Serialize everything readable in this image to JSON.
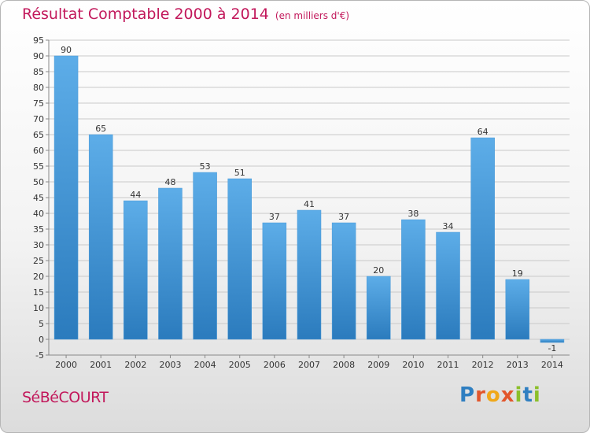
{
  "header": {
    "title": "Résultat Comptable 2000 à 2014",
    "subtitle": "(en milliers d'€)"
  },
  "footer": {
    "commune": "SéBéCOURT",
    "logo": "Proxiti"
  },
  "colors": {
    "title": "#c2185b",
    "bar_top": "#5dade8",
    "bar_bottom": "#2b7bbd",
    "grid": "#c9c9c9"
  },
  "chart_data": {
    "type": "bar",
    "title": "Résultat Comptable 2000 à 2014",
    "subtitle": "(en milliers d'€)",
    "xlabel": "",
    "ylabel": "",
    "categories": [
      "2000",
      "2001",
      "2002",
      "2003",
      "2004",
      "2005",
      "2006",
      "2007",
      "2008",
      "2009",
      "2010",
      "2011",
      "2012",
      "2013",
      "2014"
    ],
    "values": [
      90,
      65,
      44,
      48,
      53,
      51,
      37,
      41,
      37,
      20,
      38,
      34,
      64,
      19,
      -1
    ],
    "ylim": [
      -5,
      95
    ],
    "yticks": [
      -5,
      0,
      5,
      10,
      15,
      20,
      25,
      30,
      35,
      40,
      45,
      50,
      55,
      60,
      65,
      70,
      75,
      80,
      85,
      90,
      95
    ],
    "grid": true,
    "legend": "none"
  }
}
